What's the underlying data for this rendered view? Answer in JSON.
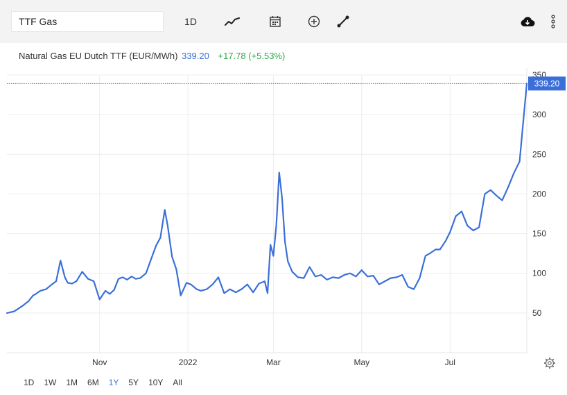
{
  "toolbar": {
    "search_value": "TTF Gas",
    "period_label": "1D",
    "icons": [
      "line-chart-icon",
      "calendar-icon",
      "add-indicator-icon",
      "draw-tool-icon",
      "cloud-download-icon",
      "more-vertical-icon"
    ]
  },
  "header": {
    "name": "Natural Gas EU Dutch TTF (EUR/MWh)",
    "price": "339.20",
    "change": "+17.78 (+5.53%)"
  },
  "range_buttons": [
    "1D",
    "1W",
    "1M",
    "6M",
    "1Y",
    "5Y",
    "10Y",
    "All"
  ],
  "range_active": "1Y",
  "colors": {
    "line": "#3a6fd8",
    "positive": "#2ea84a",
    "grid": "#ececec",
    "toolbar_bg": "#f3f3f3"
  },
  "chart_data": {
    "type": "line",
    "title": "Natural Gas EU Dutch TTF (EUR/MWh)",
    "ylim": [
      0,
      350
    ],
    "yticks": [
      50,
      100,
      150,
      200,
      250,
      300,
      350
    ],
    "xlim": [
      "2021-08-29",
      "2022-08-23"
    ],
    "xticks": [
      {
        "date": "2021-11-01",
        "label": "Nov"
      },
      {
        "date": "2022-01-01",
        "label": "2022"
      },
      {
        "date": "2022-03-01",
        "label": "Mar"
      },
      {
        "date": "2022-05-01",
        "label": "May"
      },
      {
        "date": "2022-07-01",
        "label": "Jul"
      }
    ],
    "last_price_label": "339.20",
    "last_value": 339.2,
    "grid": true,
    "series": [
      {
        "x": [
          "2021-08-29",
          "2021-09-03",
          "2021-09-08",
          "2021-09-13",
          "2021-09-16",
          "2021-09-18",
          "2021-09-21",
          "2021-09-25",
          "2021-09-29",
          "2021-10-02",
          "2021-10-05",
          "2021-10-08",
          "2021-10-10",
          "2021-10-13",
          "2021-10-16",
          "2021-10-20",
          "2021-10-24",
          "2021-10-28",
          "2021-11-01",
          "2021-11-05",
          "2021-11-08",
          "2021-11-11",
          "2021-11-14",
          "2021-11-17",
          "2021-11-20",
          "2021-11-23",
          "2021-11-26",
          "2021-11-29",
          "2021-12-03",
          "2021-12-06",
          "2021-12-10",
          "2021-12-13",
          "2021-12-16",
          "2021-12-18",
          "2021-12-21",
          "2021-12-24",
          "2021-12-27",
          "2021-12-31",
          "2022-01-03",
          "2022-01-07",
          "2022-01-10",
          "2022-01-14",
          "2022-01-18",
          "2022-01-22",
          "2022-01-26",
          "2022-01-30",
          "2022-02-03",
          "2022-02-07",
          "2022-02-11",
          "2022-02-15",
          "2022-02-19",
          "2022-02-23",
          "2022-02-25",
          "2022-02-27",
          "2022-03-01",
          "2022-03-03",
          "2022-03-05",
          "2022-03-07",
          "2022-03-09",
          "2022-03-11",
          "2022-03-14",
          "2022-03-18",
          "2022-03-22",
          "2022-03-26",
          "2022-03-30",
          "2022-04-03",
          "2022-04-07",
          "2022-04-11",
          "2022-04-15",
          "2022-04-19",
          "2022-04-23",
          "2022-04-27",
          "2022-05-01",
          "2022-05-05",
          "2022-05-09",
          "2022-05-13",
          "2022-05-17",
          "2022-05-21",
          "2022-05-25",
          "2022-05-29",
          "2022-06-02",
          "2022-06-06",
          "2022-06-10",
          "2022-06-14",
          "2022-06-17",
          "2022-06-21",
          "2022-06-24",
          "2022-06-28",
          "2022-07-01",
          "2022-07-05",
          "2022-07-09",
          "2022-07-13",
          "2022-07-17",
          "2022-07-21",
          "2022-07-25",
          "2022-07-29",
          "2022-08-02",
          "2022-08-06",
          "2022-08-10",
          "2022-08-14",
          "2022-08-18",
          "2022-08-20",
          "2022-08-23"
        ],
        "y": [
          50,
          52,
          58,
          65,
          72,
          74,
          78,
          80,
          86,
          90,
          116,
          95,
          88,
          87,
          90,
          102,
          93,
          90,
          67,
          78,
          74,
          79,
          93,
          95,
          92,
          96,
          93,
          94,
          100,
          115,
          135,
          145,
          180,
          160,
          121,
          105,
          72,
          88,
          86,
          80,
          78,
          80,
          86,
          95,
          75,
          80,
          76,
          80,
          86,
          76,
          87,
          90,
          75,
          136,
          122,
          160,
          227,
          195,
          140,
          115,
          102,
          95,
          94,
          108,
          96,
          98,
          92,
          95,
          94,
          98,
          100,
          96,
          104,
          96,
          97,
          86,
          90,
          94,
          95,
          98,
          83,
          80,
          94,
          122,
          125,
          130,
          130,
          141,
          152,
          172,
          178,
          160,
          154,
          158,
          200,
          205,
          198,
          192,
          208,
          226,
          241,
          280,
          339.2
        ]
      }
    ]
  }
}
